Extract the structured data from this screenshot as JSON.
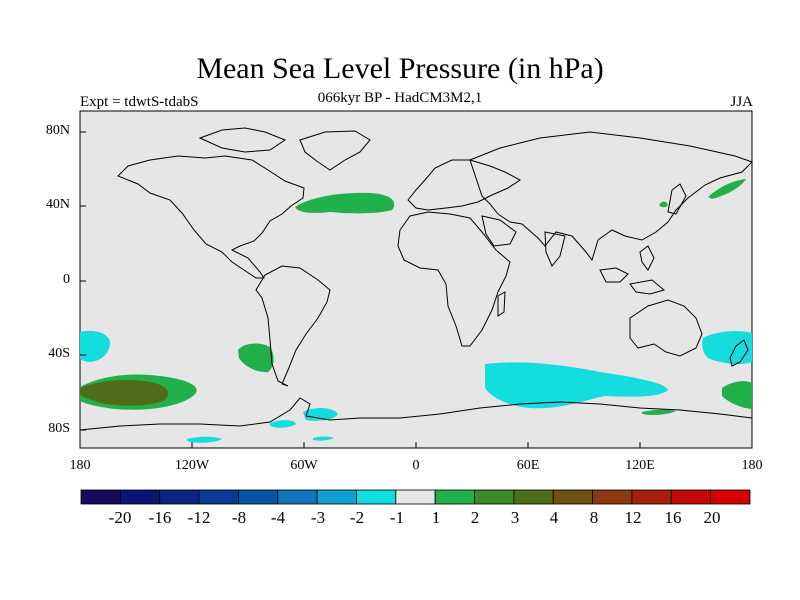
{
  "title": "Mean Sea Level Pressure (in hPa)",
  "subtitle": "066kyr BP - HadCM3M2,1",
  "experiment_label": "Expt = tdwtS-tdabS",
  "season_label": "JJA",
  "axes": {
    "lat_ticks": [
      "80N",
      "40N",
      "0",
      "40S",
      "80S"
    ],
    "lon_ticks": [
      "180",
      "120W",
      "60W",
      "0",
      "60E",
      "120E",
      "180"
    ]
  },
  "colorbar": {
    "labels": [
      "-20",
      "-16",
      "-12",
      "-8",
      "-4",
      "-3",
      "-2",
      "-1",
      "1",
      "2",
      "3",
      "4",
      "8",
      "12",
      "16",
      "20"
    ],
    "colors": [
      "#1a0a5c",
      "#0d1370",
      "#0a2482",
      "#083a96",
      "#0a54a8",
      "#1173bd",
      "#11a0cf",
      "#14dde0",
      "#e6e6e6",
      "#22b04a",
      "#3d8a28",
      "#4f6d18",
      "#6e5212",
      "#8a3a10",
      "#a6200c",
      "#c20a0a",
      "#d60000"
    ]
  },
  "map": {
    "ocean_color": "#e6e6e6",
    "positive_color": "#22b04a",
    "strong_positive_color": "#4f6d18",
    "negative_color": "#14dde0"
  }
}
